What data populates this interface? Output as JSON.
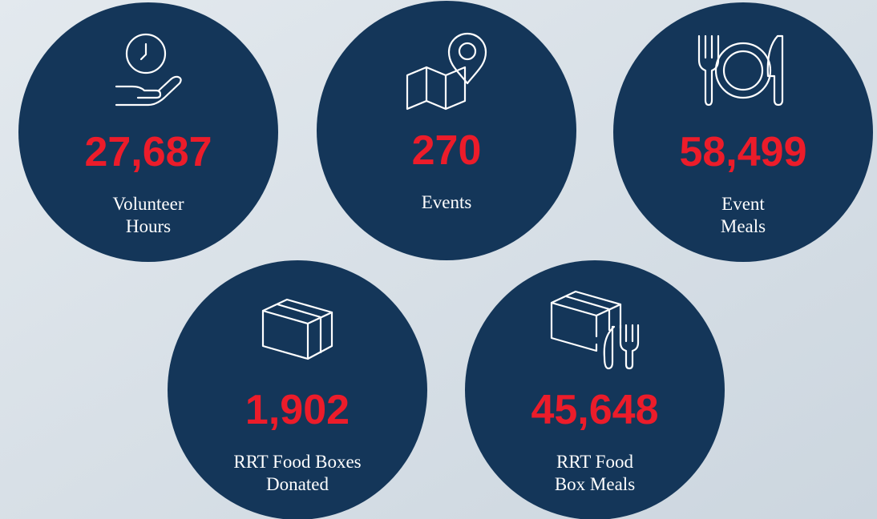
{
  "stats": [
    {
      "value": "27,687",
      "label_lines": [
        "Volunteer",
        "Hours"
      ]
    },
    {
      "value": "270",
      "label_lines": [
        "Events"
      ]
    },
    {
      "value": "58,499",
      "label_lines": [
        "Event",
        "Meals"
      ]
    },
    {
      "value": "1,902",
      "label_lines": [
        "RRT Food Boxes",
        "Donated"
      ]
    },
    {
      "value": "45,648",
      "label_lines": [
        "RRT Food",
        "Box Meals"
      ]
    }
  ]
}
